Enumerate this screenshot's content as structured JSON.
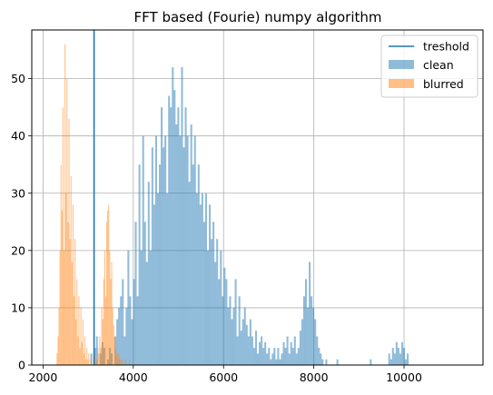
{
  "chart_data": {
    "type": "bar",
    "title": "FFT  based (Fourie) numpy algorithm",
    "xlabel": "",
    "ylabel": "",
    "xlim": [
      1750,
      11750
    ],
    "ylim": [
      0,
      58.5
    ],
    "xticks": [
      2000,
      4000,
      6000,
      8000,
      10000
    ],
    "yticks": [
      0,
      10,
      20,
      30,
      40,
      50
    ],
    "grid": true,
    "legend_position": "top-right",
    "threshold": {
      "name": "treshold",
      "x": 3130,
      "color": "#1f77b4"
    },
    "series": [
      {
        "name": "clean",
        "color": "#1f77b4",
        "alpha": 0.5,
        "bin_start": 3050,
        "bin_width": 41,
        "counts": [
          2,
          0,
          3,
          5,
          0,
          2,
          4,
          3,
          0,
          1,
          3,
          2,
          0,
          5,
          8,
          10,
          12,
          15,
          5,
          10,
          20,
          12,
          8,
          15,
          25,
          12,
          35,
          20,
          40,
          25,
          18,
          32,
          20,
          38,
          28,
          40,
          30,
          35,
          45,
          38,
          40,
          30,
          47,
          45,
          52,
          48,
          42,
          45,
          40,
          52,
          38,
          45,
          40,
          32,
          42,
          35,
          40,
          30,
          35,
          28,
          30,
          25,
          30,
          20,
          28,
          22,
          25,
          18,
          22,
          15,
          20,
          12,
          17,
          15,
          10,
          12,
          8,
          10,
          15,
          5,
          12,
          6,
          8,
          10,
          7,
          5,
          8,
          5,
          3,
          6,
          2,
          4,
          5,
          3,
          4,
          2,
          3,
          1,
          2,
          3,
          1,
          3,
          1,
          2,
          4,
          3,
          5,
          2,
          4,
          3,
          5,
          2,
          3,
          6,
          8,
          12,
          15,
          10,
          18,
          12,
          10,
          8,
          5,
          3,
          2,
          1,
          0,
          1,
          0,
          0,
          0,
          0,
          0,
          1,
          0,
          0,
          0,
          0,
          0,
          0,
          0,
          0,
          0,
          0,
          0,
          0,
          0,
          0,
          0,
          0,
          0,
          1,
          0,
          0,
          0,
          0,
          0,
          0,
          0,
          0,
          0,
          2,
          1,
          3,
          2,
          4,
          3,
          2,
          4,
          3,
          1,
          2
        ]
      },
      {
        "name": "blurred",
        "color": "#ff7f0e",
        "alpha": 0.5,
        "bin_start": 2300,
        "bin_width": 22,
        "counts": [
          2,
          5,
          10,
          20,
          35,
          27,
          45,
          20,
          56,
          30,
          50,
          25,
          43,
          22,
          33,
          18,
          28,
          12,
          22,
          8,
          15,
          5,
          12,
          3,
          10,
          4,
          8,
          2,
          5,
          1,
          3,
          1,
          2,
          0,
          1,
          0,
          0,
          1,
          2,
          0,
          1,
          3,
          2,
          5,
          3,
          10,
          8,
          15,
          20,
          12,
          25,
          27,
          28,
          20,
          15,
          18,
          10,
          7,
          5,
          3,
          2,
          1,
          2,
          1,
          1,
          0,
          1,
          0,
          0,
          1,
          0,
          0,
          0,
          1
        ]
      }
    ]
  }
}
